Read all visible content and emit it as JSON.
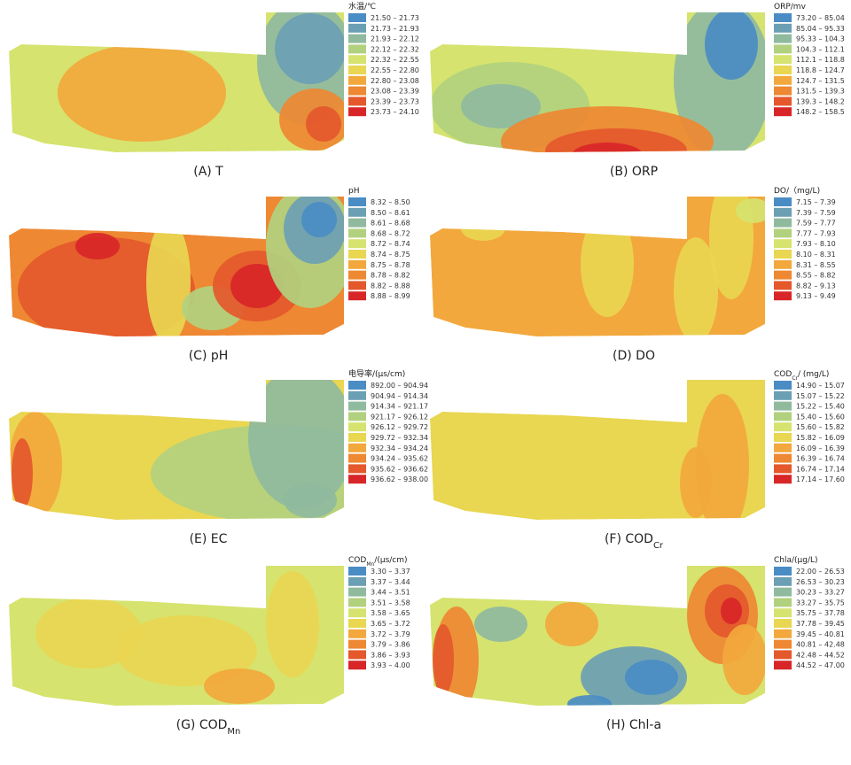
{
  "legend_colors": [
    "#4a8cc4",
    "#6b9fb4",
    "#8fba9e",
    "#b2d17e",
    "#d6e36e",
    "#e9d651",
    "#f2a83c",
    "#ee8832",
    "#e4582c",
    "#d82628"
  ],
  "panels": [
    {
      "legend_title": {
        "text": "水温/℃"
      },
      "caption": {
        "text": "(A)  T"
      },
      "legend": [
        "21.50 – 21.73",
        "21.73 – 21.93",
        "21.93 – 22.12",
        "22.12 – 22.32",
        "22.32 – 22.55",
        "22.55 – 22.80",
        "22.80 – 23.08",
        "23.08 – 23.39",
        "23.39 – 23.73",
        "23.73 – 24.10"
      ]
    },
    {
      "legend_title": {
        "text": "ORP/mv"
      },
      "caption": {
        "text": "(B)  ORP"
      },
      "legend": [
        "73.20 – 85.04",
        "85.04 – 95.33",
        "95.33 – 104.3",
        "104.3 – 112.1",
        "112.1 – 118.8",
        "118.8 – 124.7",
        "124.7 – 131.5",
        "131.5 – 139.3",
        "139.3 – 148.2",
        "148.2 – 158.5"
      ]
    },
    {
      "legend_title": {
        "text": "pH"
      },
      "caption": {
        "text": "(C)  pH"
      },
      "legend": [
        "8.32 – 8.50",
        "8.50 – 8.61",
        "8.61 – 8.68",
        "8.68 – 8.72",
        "8.72 – 8.74",
        "8.74 – 8.75",
        "8.75 – 8.78",
        "8.78 – 8.82",
        "8.82 – 8.88",
        "8.88 – 8.99"
      ]
    },
    {
      "legend_title": {
        "text": "DO/（mg/L)"
      },
      "caption": {
        "text": "(D)  DO"
      },
      "legend": [
        "7.15 – 7.39",
        "7.39 – 7.59",
        "7.59 – 7.77",
        "7.77 – 7.93",
        "7.93 – 8.10",
        "8.10 – 8.31",
        "8.31 – 8.55",
        "8.55 – 8.82",
        "8.82 – 9.13",
        "9.13 – 9.49"
      ]
    },
    {
      "legend_title": {
        "text": "电导率/(μs/cm)"
      },
      "caption": {
        "text": "(E)  EC"
      },
      "legend": [
        "892.00 – 904.94",
        "904.94 – 914.34",
        "914.34 – 921.17",
        "921.17 – 926.12",
        "926.12 – 929.72",
        "929.72 – 932.34",
        "932.34 – 934.24",
        "934.24 – 935.62",
        "935.62 – 936.62",
        "936.62 – 938.00"
      ]
    },
    {
      "legend_title": {
        "text": "COD",
        "sub": "Cr",
        "after": "/ (mg/L)"
      },
      "caption": {
        "text": "(F)  COD",
        "sub": "Cr"
      },
      "legend": [
        "14.90 – 15.07",
        "15.07 – 15.22",
        "15.22 – 15.40",
        "15.40 – 15.60",
        "15.60 – 15.82",
        "15.82 – 16.09",
        "16.09 – 16.39",
        "16.39 – 16.74",
        "16.74 – 17.14",
        "17.14 – 17.60"
      ]
    },
    {
      "legend_title": {
        "text": "COD",
        "sub": "Mn",
        "after": "/(μs/cm)"
      },
      "caption": {
        "text": "(G)  COD",
        "sub": "Mn"
      },
      "legend": [
        "3.30 – 3.37",
        "3.37 – 3.44",
        "3.44 – 3.51",
        "3.51 – 3.58",
        "3.58 – 3.65",
        "3.65 – 3.72",
        "3.72 – 3.79",
        "3.79 – 3.86",
        "3.86 – 3.93",
        "3.93 – 4.00"
      ]
    },
    {
      "legend_title": {
        "text": "Chla/(μg/L)"
      },
      "caption": {
        "text": "(H)  Chl-a"
      },
      "legend": [
        "22.00 – 26.53",
        "26.53 – 30.23",
        "30.23 – 33.27",
        "33.27 – 35.75",
        "35.75 – 37.78",
        "37.78 – 39.45",
        "39.45 – 40.81",
        "40.81 – 42.48",
        "42.48 – 44.52",
        "44.52 – 47.00"
      ]
    }
  ]
}
